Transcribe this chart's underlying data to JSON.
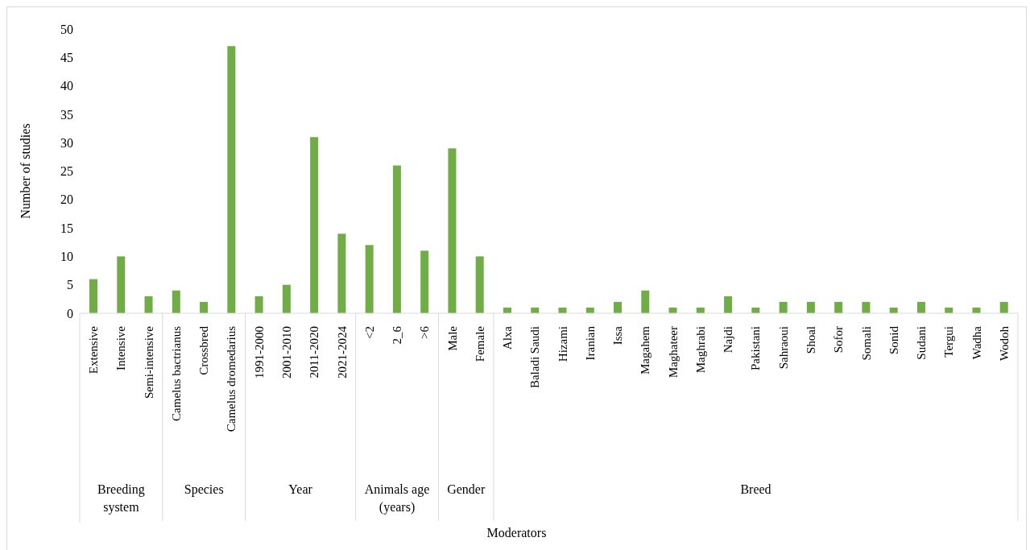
{
  "chart_data": {
    "type": "bar",
    "ylabel": "Number of studies",
    "categories": [
      "Extensive",
      "Intensive",
      "Semi-intensive",
      "Camelus bactrianus",
      "Crossbred",
      "Camelus dromedarius",
      "1991-2000",
      "2001-2010",
      "2011-2020",
      "2021-2024",
      "<2",
      "2_6",
      ">6",
      "Male",
      "Female",
      "Alxa",
      "Baladi Saudi",
      "Hizami",
      "Iranian",
      "Issa",
      "Magahem",
      "Maghateer",
      "Maghrabi",
      "Najdi",
      "Pakistani",
      "Sahraoui",
      "Shoal",
      "Sofor",
      "Somali",
      "Sonid",
      "Sudani",
      "Tergui",
      "Wadha",
      "Wodoh"
    ],
    "values": [
      6,
      10,
      3,
      4,
      2,
      47,
      3,
      5,
      31,
      14,
      12,
      26,
      11,
      29,
      10,
      1,
      1,
      1,
      1,
      2,
      4,
      1,
      1,
      3,
      1,
      2,
      2,
      2,
      2,
      1,
      2,
      1,
      1,
      2
    ],
    "color": "#70ad47",
    "ylim": [
      0,
      50
    ],
    "yticks": [
      0,
      5,
      10,
      15,
      20,
      25,
      30,
      35,
      40,
      45,
      50
    ],
    "grid": false,
    "legend": false,
    "annotations": [
      "Breeding system",
      "Species",
      "Year",
      "Animals age (years)",
      "Gender",
      "Breed",
      "Moderators"
    ]
  }
}
